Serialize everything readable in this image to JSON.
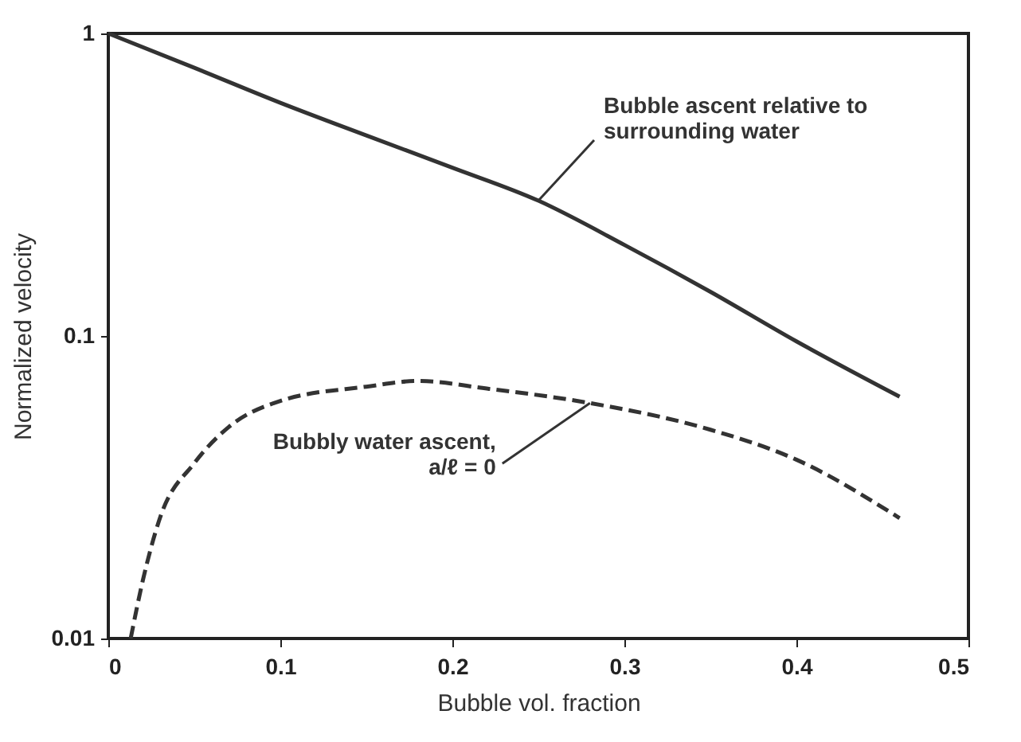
{
  "chart_data": {
    "type": "line",
    "xlabel": "Bubble vol. fraction",
    "ylabel": "Normalized velocity",
    "log": "y",
    "xlim": [
      0,
      0.5
    ],
    "ylim": [
      0.01,
      1
    ],
    "xticks": [
      0,
      0.1,
      0.2,
      0.3,
      0.4,
      0.5
    ],
    "yticks": [
      0.01,
      0.1,
      1
    ],
    "grid": false,
    "series": [
      {
        "color": "#333333",
        "line_style": "solid",
        "x": [
          0,
          0.05,
          0.1,
          0.15,
          0.2,
          0.25,
          0.3,
          0.35,
          0.4,
          0.46
        ],
        "values": [
          1,
          0.77,
          0.59,
          0.46,
          0.36,
          0.28,
          0.2,
          0.14,
          0.096,
          0.063
        ]
      },
      {
        "color": "#333333",
        "line_style": "dashed",
        "x": [
          0.013,
          0.02,
          0.03,
          0.05,
          0.07,
          0.1,
          0.15,
          0.18,
          0.22,
          0.28,
          0.35,
          0.4,
          0.46
        ],
        "values": [
          0.01,
          0.0155,
          0.025,
          0.038,
          0.05,
          0.061,
          0.068,
          0.071,
          0.067,
          0.06,
          0.049,
          0.039,
          0.025
        ]
      }
    ],
    "annotations": [
      {
        "text": "Bubble ascent relative to\nsurrounding water",
        "x": 0.25,
        "y": 0.28
      },
      {
        "text": "Bubbly water ascent,\na/ℓ = 0",
        "x": 0.28,
        "y": 0.06
      }
    ]
  }
}
